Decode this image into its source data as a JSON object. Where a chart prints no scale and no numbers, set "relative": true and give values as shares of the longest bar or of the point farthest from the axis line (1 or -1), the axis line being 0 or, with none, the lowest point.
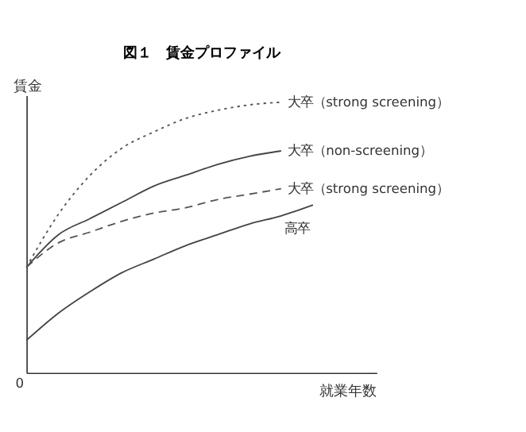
{
  "chart_data": {
    "type": "line",
    "title": "図１　賃金プロファイル",
    "xlabel": "就業年数",
    "ylabel": "賃金",
    "relative": true,
    "grid": false,
    "marker": "none",
    "categories": [
      null,
      null,
      null,
      null,
      null,
      null,
      null,
      null,
      null,
      null
    ],
    "annotations": [
      "0"
    ],
    "series": [
      {
        "name": "大卒（strong screening）",
        "color": "#555555",
        "line_style": "dotted",
        "values": [
          0.39,
          0.585,
          0.73,
          0.83,
          0.89,
          0.94,
          0.97,
          0.99,
          1,
          null
        ]
      },
      {
        "name": "大卒（non-screening）",
        "color": "#444444",
        "line_style": "solid",
        "values": [
          0.39,
          0.51,
          0.57,
          0.63,
          0.69,
          0.73,
          0.77,
          0.8,
          0.82,
          null
        ]
      },
      {
        "name": "大卒（strong screening）",
        "color": "#555555",
        "line_style": "dashed",
        "values": [
          0.39,
          0.48,
          0.52,
          0.56,
          0.59,
          0.61,
          0.64,
          0.66,
          0.68,
          null
        ]
      },
      {
        "name": "高卒",
        "color": "#444444",
        "line_style": "solid",
        "values": [
          0.12,
          0.22,
          0.3,
          0.37,
          0.42,
          0.47,
          0.51,
          0.55,
          0.58,
          0.62
        ]
      }
    ]
  }
}
